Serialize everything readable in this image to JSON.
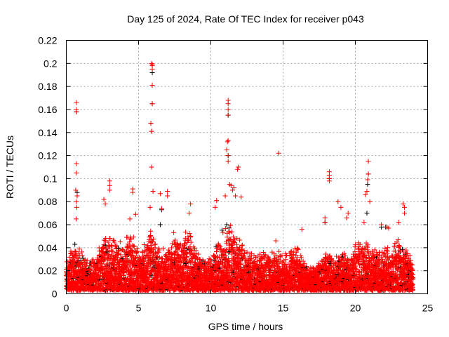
{
  "chart_data": {
    "type": "scatter",
    "title": "Day 125 of 2024, Rate Of TEC Index for receiver p043",
    "xlabel": "GPS time / hours",
    "ylabel": "ROTI / TECUs",
    "xlim": [
      0,
      25
    ],
    "ylim": [
      0,
      0.22
    ],
    "xticks": [
      "0",
      "5",
      "10",
      "15",
      "20",
      "25"
    ],
    "xtick_values": [
      0,
      5,
      10,
      15,
      20,
      25
    ],
    "yticks": [
      "0",
      "0.02",
      "0.04",
      "0.06",
      "0.08",
      "0.1",
      "0.12",
      "0.14",
      "0.16",
      "0.18",
      "0.2",
      "0.22"
    ],
    "ytick_values": [
      0,
      0.02,
      0.04,
      0.06,
      0.08,
      0.1,
      0.12,
      0.14,
      0.16,
      0.18,
      0.2,
      0.22
    ],
    "grid": true,
    "marker": "+",
    "colors": {
      "primary": "#ff0000",
      "secondary": "#000000",
      "grid": "#a0a0a0"
    },
    "dense_band": {
      "description_x_step_hours": 0.5,
      "x_start": 0,
      "lower": 0.003,
      "upper_envelope": [
        0.035,
        0.045,
        0.04,
        0.03,
        0.035,
        0.05,
        0.055,
        0.05,
        0.045,
        0.06,
        0.04,
        0.05,
        0.06,
        0.04,
        0.045,
        0.055,
        0.05,
        0.06,
        0.04,
        0.03,
        0.04,
        0.05,
        0.06,
        0.07,
        0.05,
        0.04,
        0.035,
        0.04,
        0.035,
        0.04,
        0.035,
        0.04,
        0.045,
        0.03,
        0.025,
        0.03,
        0.04,
        0.03,
        0.04,
        0.035,
        0.045,
        0.05,
        0.045,
        0.04,
        0.045,
        0.04,
        0.05,
        0.045,
        0.03
      ]
    },
    "peaks": [
      [
        0.7,
        0.166
      ],
      [
        0.7,
        0.16
      ],
      [
        0.7,
        0.158
      ],
      [
        0.7,
        0.113
      ],
      [
        0.7,
        0.105
      ],
      [
        0.65,
        0.09
      ],
      [
        0.75,
        0.085
      ],
      [
        0.7,
        0.08
      ],
      [
        0.72,
        0.075
      ],
      [
        0.68,
        0.065
      ],
      [
        3.0,
        0.098
      ],
      [
        3.0,
        0.094
      ],
      [
        3.0,
        0.09
      ],
      [
        2.6,
        0.082
      ],
      [
        2.7,
        0.078
      ],
      [
        4.6,
        0.091
      ],
      [
        4.6,
        0.088
      ],
      [
        4.8,
        0.069
      ],
      [
        4.4,
        0.065
      ],
      [
        5.9,
        0.2
      ],
      [
        5.95,
        0.199
      ],
      [
        5.95,
        0.198
      ],
      [
        5.95,
        0.195
      ],
      [
        5.95,
        0.181
      ],
      [
        5.95,
        0.165
      ],
      [
        5.85,
        0.148
      ],
      [
        5.9,
        0.141
      ],
      [
        5.9,
        0.11
      ],
      [
        6.0,
        0.089
      ],
      [
        5.8,
        0.075
      ],
      [
        6.5,
        0.087
      ],
      [
        7.0,
        0.089
      ],
      [
        7.0,
        0.085
      ],
      [
        6.6,
        0.074
      ],
      [
        8.6,
        0.078
      ],
      [
        8.5,
        0.07
      ],
      [
        10.4,
        0.081
      ],
      [
        10.3,
        0.075
      ],
      [
        11.2,
        0.168
      ],
      [
        11.2,
        0.165
      ],
      [
        11.2,
        0.16
      ],
      [
        11.2,
        0.155
      ],
      [
        11.2,
        0.133
      ],
      [
        11.15,
        0.132
      ],
      [
        11.1,
        0.125
      ],
      [
        11.2,
        0.12
      ],
      [
        11.2,
        0.115
      ],
      [
        11.3,
        0.095
      ],
      [
        11.4,
        0.094
      ],
      [
        11.5,
        0.09
      ],
      [
        11.6,
        0.092
      ],
      [
        11.9,
        0.11
      ],
      [
        11.85,
        0.108
      ],
      [
        12.1,
        0.084
      ],
      [
        11.0,
        0.085
      ],
      [
        11.7,
        0.085
      ],
      [
        14.7,
        0.122
      ],
      [
        14.5,
        0.046
      ],
      [
        16.3,
        0.056
      ],
      [
        17.9,
        0.066
      ],
      [
        17.9,
        0.062
      ],
      [
        18.2,
        0.106
      ],
      [
        18.2,
        0.103
      ],
      [
        18.2,
        0.1
      ],
      [
        18.2,
        0.098
      ],
      [
        18.8,
        0.08
      ],
      [
        19.0,
        0.075
      ],
      [
        19.5,
        0.07
      ],
      [
        19.4,
        0.066
      ],
      [
        20.9,
        0.115
      ],
      [
        20.9,
        0.104
      ],
      [
        20.85,
        0.099
      ],
      [
        20.8,
        0.089
      ],
      [
        21.0,
        0.08
      ],
      [
        20.7,
        0.086
      ],
      [
        20.6,
        0.062
      ],
      [
        21.8,
        0.06
      ],
      [
        22.2,
        0.058
      ],
      [
        23.3,
        0.078
      ],
      [
        23.4,
        0.075
      ],
      [
        23.4,
        0.07
      ],
      [
        22.3,
        0.057
      ],
      [
        23.0,
        0.062
      ]
    ],
    "secondary_peaks": [
      [
        5.95,
        0.192
      ],
      [
        5.95,
        0.165
      ],
      [
        5.85,
        0.148
      ],
      [
        5.9,
        0.141
      ],
      [
        0.7,
        0.158
      ],
      [
        0.75,
        0.088
      ],
      [
        11.2,
        0.155
      ],
      [
        11.2,
        0.12
      ],
      [
        11.1,
        0.06
      ],
      [
        20.9,
        0.104
      ],
      [
        20.85,
        0.095
      ],
      [
        18.2,
        0.1
      ],
      [
        21.8,
        0.058
      ],
      [
        17.9,
        0.062
      ],
      [
        6.5,
        0.06
      ],
      [
        6.6,
        0.073
      ],
      [
        22.1,
        0.058
      ],
      [
        20.8,
        0.07
      ]
    ]
  }
}
